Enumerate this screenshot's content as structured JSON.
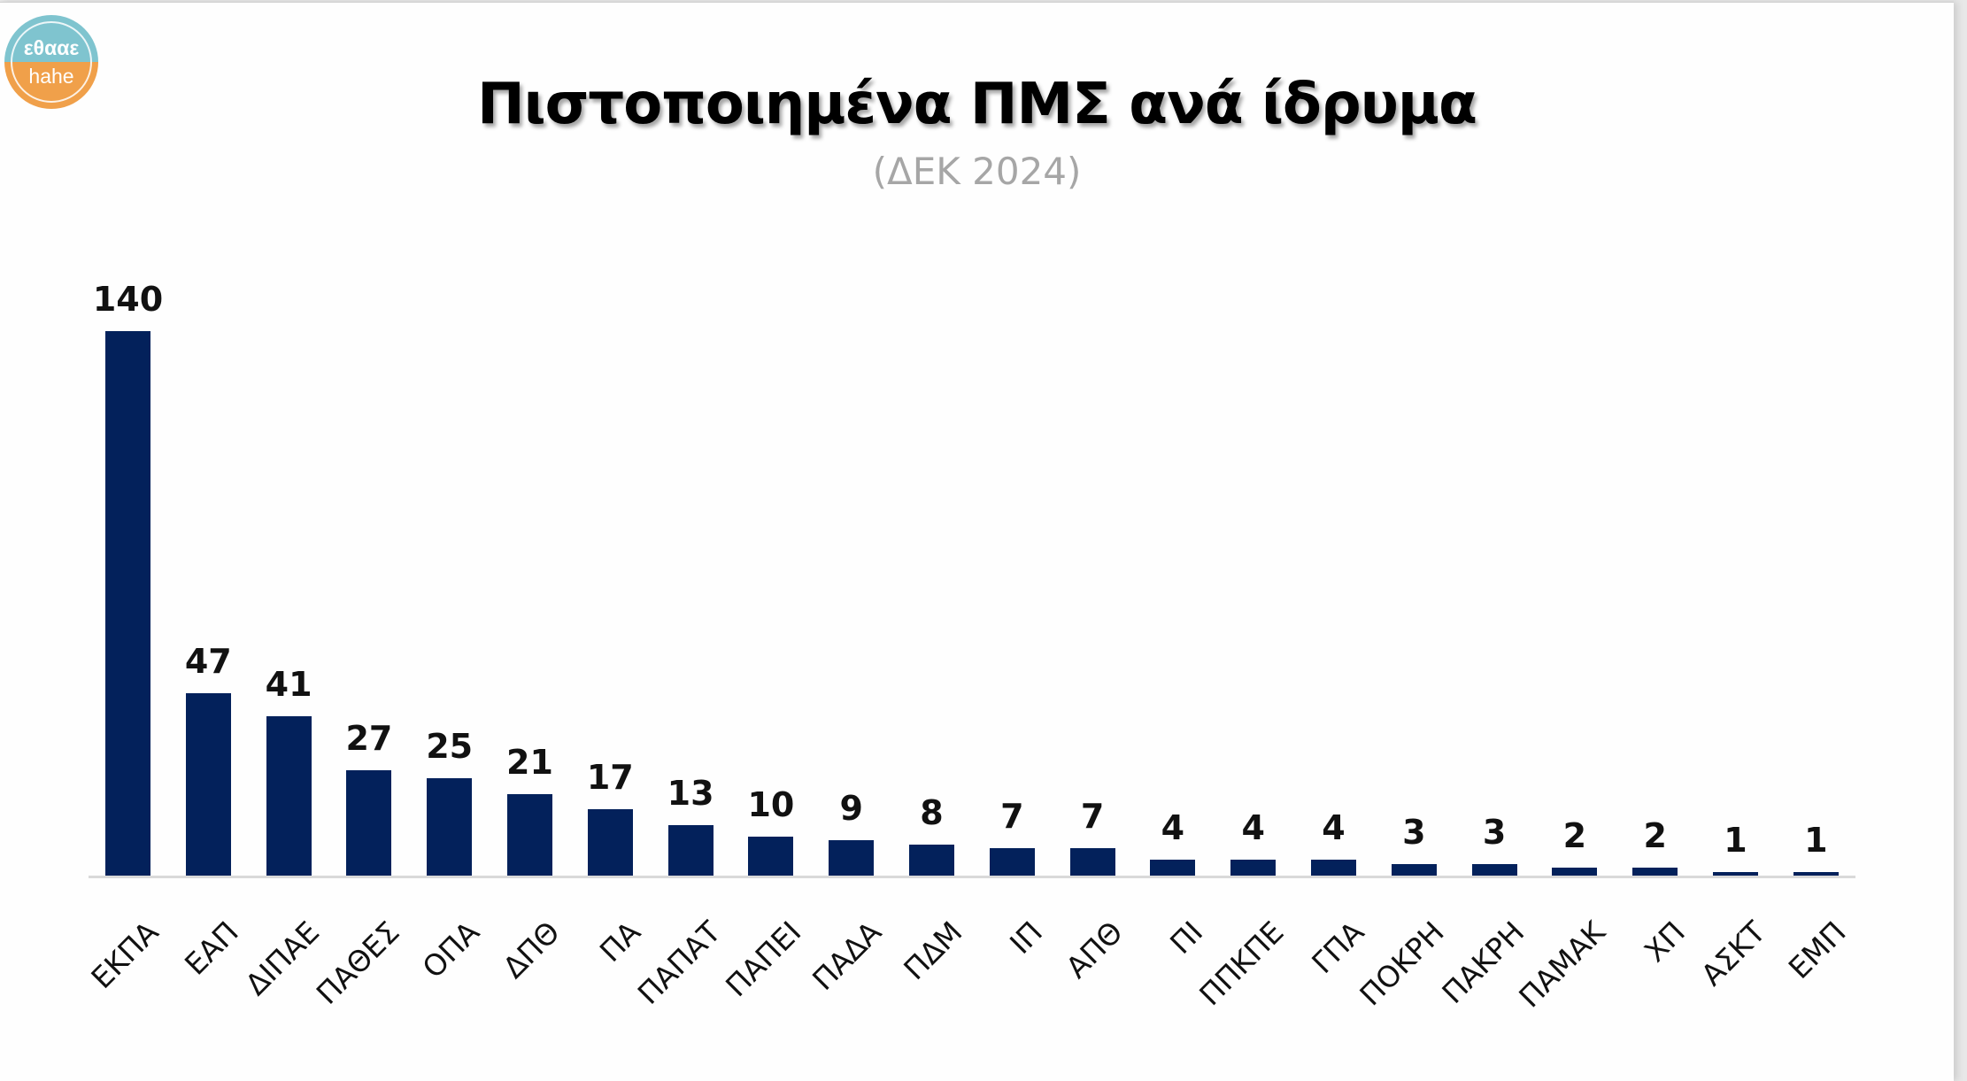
{
  "logo": {
    "line1": "εθααε",
    "line2": "hahe",
    "color_top": "#7fc4cf",
    "color_bottom": "#f0a04a"
  },
  "header": {
    "title": "Πιστοποιημένα ΠΜΣ ανά ίδρυμα",
    "subtitle": "(ΔΕΚ 2024)"
  },
  "colors": {
    "bar": "#03215b",
    "axis": "#d9d9d9",
    "subtitle": "#a6a6a6"
  },
  "chart_data": {
    "type": "bar",
    "title": "Πιστοποιημένα ΠΜΣ ανά ίδρυμα",
    "subtitle": "(ΔΕΚ 2024)",
    "xlabel": "",
    "ylabel": "",
    "grid": false,
    "legend": "none",
    "data_labels": true,
    "ylim": [
      0,
      140
    ],
    "categories": [
      "ΕΚΠΑ",
      "ΕΑΠ",
      "ΔΙΠΑΕ",
      "ΠΑΘΕΣ",
      "ΟΠΑ",
      "ΔΠΘ",
      "ΠΑ",
      "ΠΑΠΑΤ",
      "ΠΑΠΕΙ",
      "ΠΑΔΑ",
      "ΠΔΜ",
      "ΙΠ",
      "ΑΠΘ",
      "ΠΙ",
      "ΠΠΚΠΕ",
      "ΓΠΑ",
      "ΠΟΚΡΗ",
      "ΠΑΚΡΗ",
      "ΠΑΜΑΚ",
      "ΧΠ",
      "ΑΣΚΤ",
      "ΕΜΠ"
    ],
    "values": [
      140,
      47,
      41,
      27,
      25,
      21,
      17,
      13,
      10,
      9,
      8,
      7,
      7,
      4,
      4,
      4,
      3,
      3,
      2,
      2,
      1,
      1
    ],
    "labels": [
      "140",
      "47",
      "41",
      "27",
      "25",
      "21",
      "17",
      "13",
      "10",
      "9",
      "8",
      "7",
      "7",
      "4",
      "4",
      "4",
      "3",
      "3",
      "2",
      "2",
      "1",
      "1"
    ]
  }
}
